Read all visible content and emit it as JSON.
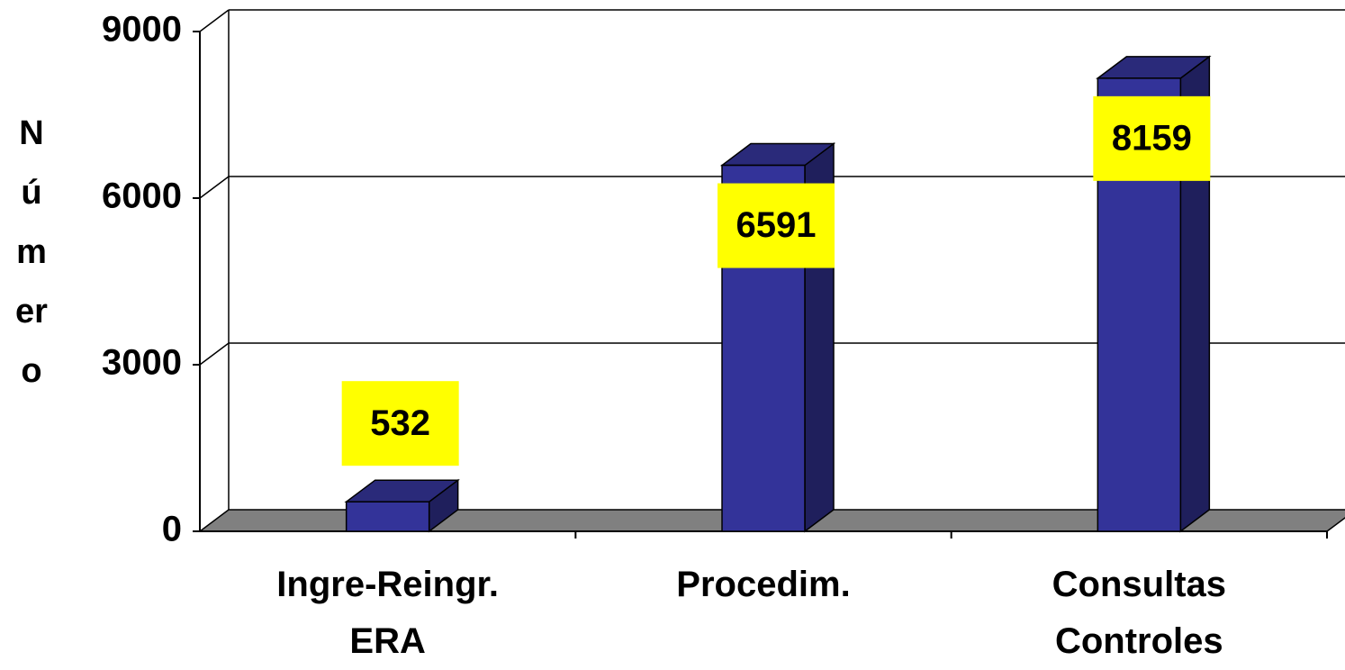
{
  "chart_data": {
    "type": "bar3d",
    "y_label": "Número",
    "categories": [
      "Ingre-Reingr.\nERA",
      "Procedim.",
      "Consultas\nControles"
    ],
    "values": [
      532,
      6591,
      8159
    ],
    "color": "#333399",
    "label_color": "#ffff00",
    "ylim": [
      0,
      9000
    ],
    "yticks": [
      0,
      3000,
      6000,
      9000
    ],
    "grid": true
  }
}
